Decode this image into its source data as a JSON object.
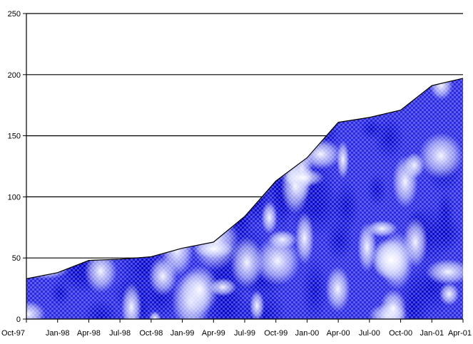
{
  "chart_data": {
    "type": "area",
    "title": "",
    "xlabel": "",
    "ylabel": "",
    "categories": [
      "Oct-97",
      "Jan-98",
      "Apr-98",
      "Jul-98",
      "Oct-98",
      "Jan-99",
      "Apr-99",
      "Jul-99",
      "Oct-99",
      "Jan-00",
      "Apr-00",
      "Jul-00",
      "Oct-00",
      "Jan-01",
      "Apr-01"
    ],
    "series": [
      {
        "values": [
          33,
          38,
          48,
          49,
          51,
          58,
          63,
          84,
          113,
          132,
          161,
          165,
          171,
          191,
          197
        ]
      }
    ],
    "ylim": [
      0,
      250
    ],
    "yticks": [
      0,
      50,
      100,
      150,
      200,
      250
    ],
    "grid": true,
    "legend": "none",
    "fill": "photo-texture-blue",
    "colors": {
      "fill": "#2a2ae6",
      "highlight": "#e8ecff",
      "line": "#000000"
    }
  }
}
